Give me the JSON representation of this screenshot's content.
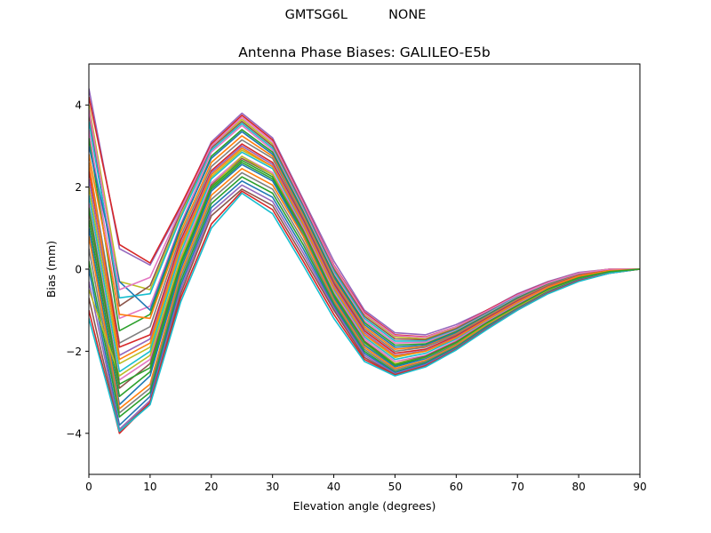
{
  "figure": {
    "suptitle": "GMTSG6L          NONE"
  },
  "chart_data": {
    "type": "line",
    "title": "Antenna Phase Biases: GALILEO-E5b",
    "xlabel": "Elevation angle (degrees)",
    "ylabel": "Bias (mm)",
    "xlim": [
      0,
      90
    ],
    "ylim": [
      -5,
      5
    ],
    "xticks": [
      0,
      10,
      20,
      30,
      40,
      50,
      60,
      70,
      80,
      90
    ],
    "yticks": [
      -4,
      -2,
      0,
      2,
      4
    ],
    "grid": false,
    "legend": "none",
    "x": [
      0,
      5,
      10,
      15,
      20,
      25,
      30,
      35,
      40,
      45,
      50,
      55,
      60,
      65,
      70,
      75,
      80,
      85,
      90
    ],
    "series": [
      {
        "color": "#9467bd",
        "values": [
          4.4,
          0.5,
          0.1,
          1.5,
          3.1,
          3.8,
          3.2,
          1.7,
          0.2,
          -1.0,
          -1.55,
          -1.6,
          -1.35,
          -1.0,
          -0.6,
          -0.3,
          -0.08,
          0.0,
          0.0
        ]
      },
      {
        "color": "#d62728",
        "values": [
          4.2,
          0.6,
          0.15,
          1.55,
          3.05,
          3.75,
          3.15,
          1.65,
          0.1,
          -1.05,
          -1.6,
          -1.65,
          -1.4,
          -1.0,
          -0.62,
          -0.32,
          -0.1,
          0.0,
          0.0
        ]
      },
      {
        "color": "#bcbd22",
        "values": [
          4.0,
          -0.3,
          -0.5,
          1.3,
          3.0,
          3.65,
          3.05,
          1.6,
          0.05,
          -1.1,
          -1.65,
          -1.7,
          -1.42,
          -1.05,
          -0.64,
          -0.33,
          -0.1,
          0.0,
          0.0
        ]
      },
      {
        "color": "#8c564b",
        "values": [
          3.8,
          -0.9,
          -0.4,
          1.4,
          2.95,
          3.6,
          3.0,
          1.55,
          0.0,
          -1.15,
          -1.7,
          -1.72,
          -1.45,
          -1.05,
          -0.65,
          -0.34,
          -0.1,
          -0.01,
          0.0
        ]
      },
      {
        "color": "#17becf",
        "values": [
          3.6,
          -0.7,
          -0.6,
          1.25,
          2.9,
          3.55,
          2.95,
          1.5,
          -0.05,
          -1.2,
          -1.75,
          -1.75,
          -1.48,
          -1.08,
          -0.66,
          -0.35,
          -0.11,
          -0.01,
          0.0
        ]
      },
      {
        "color": "#e377c2",
        "values": [
          3.4,
          -1.2,
          -0.9,
          1.1,
          2.85,
          3.5,
          2.9,
          1.45,
          -0.1,
          -1.25,
          -1.8,
          -1.78,
          -1.5,
          -1.1,
          -0.68,
          -0.36,
          -0.12,
          -0.01,
          0.0
        ]
      },
      {
        "color": "#2ca02c",
        "values": [
          3.2,
          -1.5,
          -1.1,
          1.0,
          2.75,
          3.4,
          2.85,
          1.4,
          -0.15,
          -1.3,
          -1.85,
          -1.82,
          -1.52,
          -1.12,
          -0.7,
          -0.37,
          -0.12,
          -0.02,
          0.0
        ]
      },
      {
        "color": "#1f77b4",
        "values": [
          3.0,
          -0.3,
          -1.0,
          1.05,
          2.7,
          3.35,
          2.8,
          1.35,
          -0.2,
          -1.35,
          -1.9,
          -1.85,
          -1.55,
          -1.14,
          -0.72,
          -0.38,
          -0.13,
          -0.02,
          0.0
        ]
      },
      {
        "color": "#ff7f0e",
        "values": [
          2.8,
          -1.1,
          -1.2,
          0.9,
          2.6,
          3.25,
          2.75,
          1.3,
          -0.25,
          -1.4,
          -1.95,
          -1.88,
          -1.58,
          -1.16,
          -0.74,
          -0.39,
          -0.14,
          -0.02,
          0.0
        ]
      },
      {
        "color": "#7f7f7f",
        "values": [
          2.6,
          -1.8,
          -1.4,
          0.8,
          2.5,
          3.15,
          2.7,
          1.25,
          -0.3,
          -1.45,
          -2.0,
          -1.9,
          -1.6,
          -1.18,
          -0.76,
          -0.4,
          -0.15,
          -0.03,
          0.0
        ]
      },
      {
        "color": "#d62728",
        "values": [
          2.4,
          -1.9,
          -1.6,
          0.7,
          2.4,
          3.05,
          2.6,
          1.2,
          -0.35,
          -1.5,
          -2.05,
          -1.95,
          -1.63,
          -1.2,
          -0.78,
          -0.42,
          -0.16,
          -0.03,
          0.0
        ]
      },
      {
        "color": "#9467bd",
        "values": [
          2.2,
          -2.1,
          -1.7,
          0.6,
          2.35,
          3.0,
          2.55,
          1.15,
          -0.4,
          -1.55,
          -2.1,
          -1.98,
          -1.66,
          -1.22,
          -0.8,
          -0.43,
          -0.17,
          -0.04,
          0.0
        ]
      },
      {
        "color": "#bcbd22",
        "values": [
          2.0,
          -2.3,
          -1.9,
          0.5,
          2.25,
          2.9,
          2.5,
          1.1,
          -0.45,
          -1.6,
          -2.15,
          -2.0,
          -1.68,
          -1.24,
          -0.82,
          -0.44,
          -0.18,
          -0.04,
          0.0
        ]
      },
      {
        "color": "#17becf",
        "values": [
          1.8,
          -2.5,
          -2.0,
          0.4,
          2.2,
          2.85,
          2.45,
          1.05,
          -0.5,
          -1.65,
          -2.2,
          -2.05,
          -1.7,
          -1.26,
          -0.84,
          -0.46,
          -0.19,
          -0.05,
          0.0
        ]
      },
      {
        "color": "#e377c2",
        "values": [
          1.6,
          -2.7,
          -2.2,
          0.3,
          2.1,
          2.75,
          2.35,
          1.0,
          -0.55,
          -1.7,
          -2.25,
          -2.1,
          -1.74,
          -1.28,
          -0.86,
          -0.47,
          -0.2,
          -0.05,
          0.0
        ]
      },
      {
        "color": "#8c564b",
        "values": [
          1.4,
          -2.9,
          -2.3,
          0.2,
          2.05,
          2.7,
          2.3,
          0.95,
          -0.6,
          -1.75,
          -2.3,
          -2.12,
          -1.77,
          -1.3,
          -0.88,
          -0.48,
          -0.2,
          -0.06,
          0.0
        ]
      },
      {
        "color": "#2ca02c",
        "values": [
          1.2,
          -3.1,
          -2.5,
          0.1,
          1.95,
          2.6,
          2.2,
          0.9,
          -0.65,
          -1.8,
          -2.35,
          -2.15,
          -1.8,
          -1.32,
          -0.9,
          -0.5,
          -0.21,
          -0.06,
          0.0
        ]
      },
      {
        "color": "#1f77b4",
        "values": [
          1.0,
          -3.3,
          -2.6,
          0.0,
          1.9,
          2.55,
          2.15,
          0.85,
          -0.7,
          -1.85,
          -2.38,
          -2.18,
          -1.82,
          -1.34,
          -0.92,
          -0.51,
          -0.22,
          -0.07,
          0.0
        ]
      },
      {
        "color": "#ff7f0e",
        "values": [
          0.8,
          -3.4,
          -2.8,
          -0.1,
          1.8,
          2.45,
          2.05,
          0.8,
          -0.75,
          -1.9,
          -2.42,
          -2.22,
          -1.85,
          -1.36,
          -0.94,
          -0.52,
          -0.23,
          -0.07,
          0.0
        ]
      },
      {
        "color": "#7f7f7f",
        "values": [
          0.5,
          -3.5,
          -2.9,
          -0.2,
          1.7,
          2.35,
          1.95,
          0.7,
          -0.8,
          -1.95,
          -2.46,
          -2.25,
          -1.88,
          -1.38,
          -0.95,
          -0.54,
          -0.24,
          -0.08,
          0.0
        ]
      },
      {
        "color": "#2ca02c",
        "values": [
          0.2,
          -3.6,
          -3.0,
          -0.3,
          1.6,
          2.25,
          1.85,
          0.6,
          -0.85,
          -2.0,
          -2.5,
          -2.28,
          -1.9,
          -1.4,
          -0.96,
          -0.55,
          -0.25,
          -0.08,
          0.0
        ]
      },
      {
        "color": "#1f77b4",
        "values": [
          0.0,
          -3.8,
          -3.1,
          -0.4,
          1.5,
          2.15,
          1.75,
          0.5,
          -0.9,
          -2.05,
          -2.52,
          -2.3,
          -1.92,
          -1.42,
          -0.97,
          -0.56,
          -0.26,
          -0.09,
          0.0
        ]
      },
      {
        "color": "#9467bd",
        "values": [
          -0.3,
          -3.9,
          -3.2,
          -0.5,
          1.4,
          2.05,
          1.65,
          0.4,
          -0.95,
          -2.1,
          -2.55,
          -2.33,
          -1.94,
          -1.44,
          -0.98,
          -0.57,
          -0.27,
          -0.09,
          0.0
        ]
      },
      {
        "color": "#8c564b",
        "values": [
          -0.7,
          -3.95,
          -3.25,
          -0.6,
          1.3,
          1.95,
          1.55,
          0.3,
          -1.0,
          -2.15,
          -2.57,
          -2.35,
          -1.95,
          -1.45,
          -0.99,
          -0.58,
          -0.28,
          -0.1,
          0.0
        ]
      },
      {
        "color": "#d62728",
        "values": [
          -1.0,
          -4.0,
          -3.25,
          -0.7,
          1.1,
          1.9,
          1.45,
          0.2,
          -1.1,
          -2.2,
          -2.58,
          -2.36,
          -1.96,
          -1.46,
          -1.0,
          -0.59,
          -0.29,
          -0.1,
          0.0
        ]
      },
      {
        "color": "#17becf",
        "values": [
          -1.2,
          -3.95,
          -3.3,
          -0.8,
          1.0,
          1.85,
          1.35,
          0.1,
          -1.2,
          -2.25,
          -2.6,
          -2.38,
          -1.97,
          -1.47,
          -1.0,
          -0.6,
          -0.3,
          -0.1,
          0.0
        ]
      },
      {
        "color": "#bcbd22",
        "values": [
          -0.5,
          -2.6,
          -2.1,
          0.25,
          2.0,
          2.75,
          2.3,
          0.9,
          -0.6,
          -1.8,
          -2.3,
          -2.15,
          -1.8,
          -1.33,
          -0.9,
          -0.5,
          -0.21,
          -0.06,
          0.0
        ]
      },
      {
        "color": "#e377c2",
        "values": [
          3.9,
          -0.5,
          -0.2,
          1.45,
          3.0,
          3.7,
          3.1,
          1.62,
          0.08,
          -1.08,
          -1.62,
          -1.66,
          -1.4,
          -1.02,
          -0.63,
          -0.33,
          -0.1,
          0.0,
          0.0
        ]
      },
      {
        "color": "#ff7f0e",
        "values": [
          2.6,
          -2.2,
          -1.8,
          0.55,
          2.3,
          2.95,
          2.5,
          1.1,
          -0.45,
          -1.6,
          -2.12,
          -2.0,
          -1.67,
          -1.23,
          -0.81,
          -0.44,
          -0.17,
          -0.04,
          0.0
        ]
      },
      {
        "color": "#2ca02c",
        "values": [
          1.5,
          -2.8,
          -2.4,
          0.15,
          2.0,
          2.65,
          2.25,
          0.92,
          -0.62,
          -1.78,
          -2.33,
          -2.14,
          -1.79,
          -1.31,
          -0.89,
          -0.49,
          -0.21,
          -0.06,
          0.0
        ]
      }
    ]
  }
}
